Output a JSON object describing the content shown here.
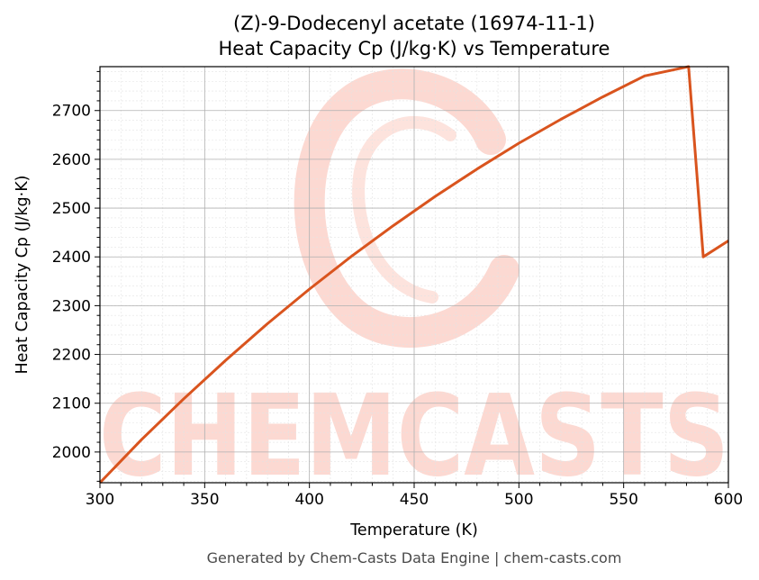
{
  "footer": "Generated by Chem-Casts Data Engine | chem-casts.com",
  "watermark": "CHEMCASTS",
  "colors": {
    "line": "#d9541e",
    "watermark": "#fcd9d2",
    "grid_major": "#b0b0b0",
    "grid_minor": "#e3e3e3",
    "axes": "#000000"
  },
  "chart_data": {
    "type": "line",
    "title_line1": "(Z)-9-Dodecenyl acetate (16974-11-1)",
    "title_line2": "Heat Capacity Cp (J/kg·K) vs Temperature",
    "xlabel": "Temperature (K)",
    "ylabel": "Heat Capacity Cp (J/kg·K)",
    "xlim": [
      300,
      600
    ],
    "ylim": [
      1937,
      2790
    ],
    "xticks": [
      300,
      350,
      400,
      450,
      500,
      550,
      600
    ],
    "yticks": [
      2000,
      2100,
      2200,
      2300,
      2400,
      2500,
      2600,
      2700
    ],
    "grid": true,
    "series": [
      {
        "x": [
          300,
          320,
          340,
          360,
          380,
          400,
          420,
          440,
          460,
          480,
          500,
          520,
          540,
          560,
          581,
          588,
          600
        ],
        "y": [
          1937,
          2026,
          2109,
          2188,
          2263,
          2334,
          2401,
          2464,
          2524,
          2580,
          2633,
          2682,
          2728,
          2771,
          2790,
          2400,
          2433
        ]
      }
    ]
  }
}
